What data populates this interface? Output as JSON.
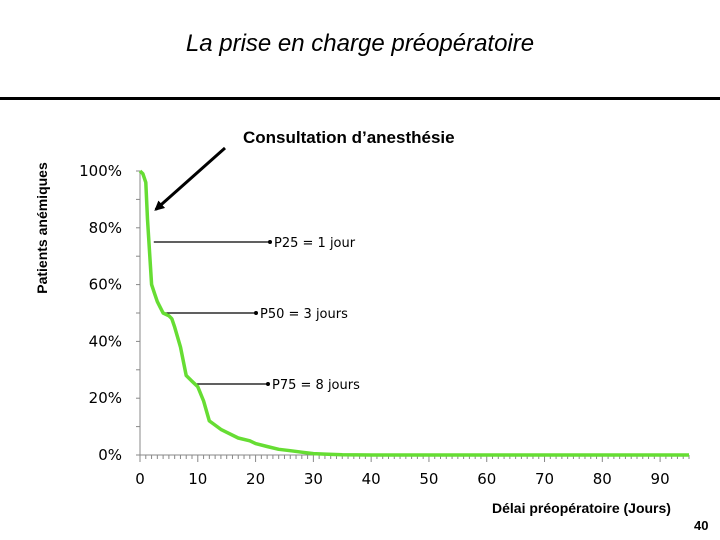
{
  "slide": {
    "title": "La prise en charge préopératoire",
    "page_number": "40"
  },
  "chart_data": {
    "type": "line",
    "title": "",
    "xlabel": "Délai préopératoire (Jours)",
    "ylabel": "Patients anémiques",
    "xlim": [
      0,
      95
    ],
    "ylim": [
      0,
      100
    ],
    "x_ticks": [
      0,
      10,
      20,
      30,
      40,
      50,
      60,
      70,
      80,
      90
    ],
    "y_ticks": [
      0,
      20,
      40,
      60,
      80,
      100
    ],
    "y_tick_labels": [
      "0%",
      "20%",
      "40%",
      "60%",
      "80%",
      "100%"
    ],
    "grid": false,
    "line_color": "#66dd33",
    "series": [
      {
        "x": [
          0,
          0.5,
          1,
          1.3,
          2,
          2.5,
          3,
          3.5,
          4,
          5,
          5.5,
          6,
          7,
          8,
          9,
          10,
          11,
          12,
          14,
          15,
          17,
          19,
          20,
          22,
          24,
          26,
          28,
          30,
          32,
          35,
          40,
          50,
          60,
          70,
          80,
          95
        ],
        "y": [
          100,
          99,
          96,
          83,
          60,
          57,
          54,
          52,
          50,
          49,
          48,
          45,
          38,
          28,
          26,
          24,
          19,
          12,
          9,
          8,
          6,
          5,
          4,
          3,
          2,
          1.5,
          1,
          0.5,
          0.3,
          0.1,
          0,
          0,
          0,
          0,
          0,
          0
        ]
      }
    ],
    "annotations": [
      {
        "text": "Consultation d’anesthésie",
        "x": 1,
        "y": 97
      },
      {
        "text": "P25 = 1 jour",
        "x": 1,
        "y": 75
      },
      {
        "text": "P50 = 3 jours",
        "x": 3,
        "y": 50
      },
      {
        "text": "P75 = 8 jours",
        "x": 8,
        "y": 25
      }
    ]
  }
}
